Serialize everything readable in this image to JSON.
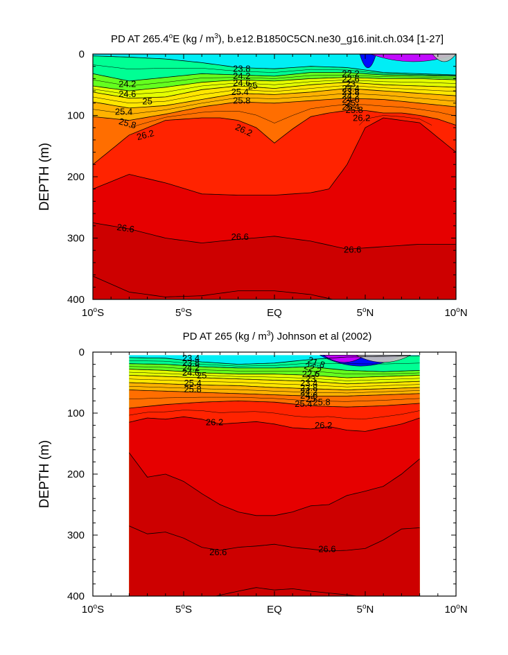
{
  "chart_data": [
    {
      "type": "contour",
      "title": "PD AT 265.4°E (kg / m3), b.e12.B1850C5CN.ne30_g16.init.ch.034 [1-27]",
      "title_parts": {
        "pre": "PD AT 265.4",
        "deg": "o",
        "mid1": "E (kg / m",
        "sup": "3",
        "post": "), b.e12.B1850C5CN.ne30_g16.init.ch.034 [1-27]"
      },
      "ylabel": "DEPTH (m)",
      "xlim": [
        -10,
        10
      ],
      "ylim": [
        0,
        400
      ],
      "y_inverted": true,
      "x_ticks": [
        {
          "value": -10,
          "num": "10",
          "deg": "o",
          "hem": "S"
        },
        {
          "value": -5,
          "num": "5",
          "deg": "o",
          "hem": "S"
        },
        {
          "value": 0,
          "num": "EQ",
          "deg": "",
          "hem": ""
        },
        {
          "value": 5,
          "num": "5",
          "deg": "o",
          "hem": "N"
        },
        {
          "value": 10,
          "num": "10",
          "deg": "o",
          "hem": "N"
        }
      ],
      "y_ticks": [
        0,
        100,
        200,
        300,
        400
      ],
      "data_xrange": [
        -10,
        10
      ],
      "surface_depth": 5,
      "levels": [
        {
          "value": 22.6,
          "color": "#0000ff",
          "xrange": [
            4.7,
            5.6
          ]
        },
        {
          "value": 21.8,
          "color": "#cc00ff",
          "xrange": [
            5.3,
            10
          ]
        },
        {
          "value": 21.4,
          "color": "#c0c0c0",
          "xrange": [
            8.7,
            10
          ]
        }
      ],
      "contour_labels": [
        {
          "text": "23.8",
          "x": -1.8,
          "y": 25,
          "angle": 0
        },
        {
          "text": "24.2",
          "x": -1.8,
          "y": 37,
          "angle": 0
        },
        {
          "text": "24.6",
          "x": -1.8,
          "y": 48,
          "angle": 0
        },
        {
          "text": "25",
          "x": -1.2,
          "y": 53,
          "angle": -10
        },
        {
          "text": "25.4",
          "x": -1.9,
          "y": 63,
          "angle": 0
        },
        {
          "text": "25.8",
          "x": -1.8,
          "y": 77,
          "angle": 0
        },
        {
          "text": "26.2",
          "x": -1.7,
          "y": 125,
          "angle": 25
        },
        {
          "text": "24.2",
          "x": -8.1,
          "y": 50,
          "angle": 0
        },
        {
          "text": "24.6",
          "x": -8.1,
          "y": 66,
          "angle": 0
        },
        {
          "text": "25",
          "x": -7.0,
          "y": 78,
          "angle": 0
        },
        {
          "text": "25.4",
          "x": -8.3,
          "y": 95,
          "angle": 0
        },
        {
          "text": "25.8",
          "x": -8.1,
          "y": 114,
          "angle": 15
        },
        {
          "text": "26.2",
          "x": -7.1,
          "y": 133,
          "angle": -15
        },
        {
          "text": "22.2",
          "x": 4.2,
          "y": 33,
          "angle": 0
        },
        {
          "text": "22.6",
          "x": 4.2,
          "y": 42,
          "angle": 0
        },
        {
          "text": "23",
          "x": 4.2,
          "y": 50,
          "angle": 0
        },
        {
          "text": "23.4",
          "x": 4.2,
          "y": 57,
          "angle": 0
        },
        {
          "text": "23.8",
          "x": 4.2,
          "y": 63,
          "angle": 0
        },
        {
          "text": "24.2",
          "x": 4.2,
          "y": 69,
          "angle": 0
        },
        {
          "text": "24.6",
          "x": 4.2,
          "y": 75,
          "angle": 0
        },
        {
          "text": "25",
          "x": 4.2,
          "y": 81,
          "angle": 0
        },
        {
          "text": "25.4",
          "x": 4.2,
          "y": 87,
          "angle": 0
        },
        {
          "text": "25.8",
          "x": 4.4,
          "y": 92,
          "angle": 0
        },
        {
          "text": "26.2",
          "x": 4.8,
          "y": 105,
          "angle": 0
        },
        {
          "text": "26.6",
          "x": -8.2,
          "y": 285,
          "angle": 8
        },
        {
          "text": "26.6",
          "x": -1.9,
          "y": 299,
          "angle": 0
        },
        {
          "text": "26.6",
          "x": 4.3,
          "y": 320,
          "angle": 0
        }
      ]
    },
    {
      "type": "contour",
      "title": "PD AT 265 (kg / m3) Johnson et al (2002)",
      "title_parts": {
        "pre": "PD AT 265 (kg / m",
        "deg": "",
        "mid1": "",
        "sup": "3",
        "post": ") Johnson et al (2002)"
      },
      "ylabel": "DEPTH (m)",
      "xlim": [
        -10,
        10
      ],
      "ylim": [
        0,
        400
      ],
      "y_inverted": true,
      "x_ticks": [
        {
          "value": -10,
          "num": "10",
          "deg": "o",
          "hem": "S"
        },
        {
          "value": -5,
          "num": "5",
          "deg": "o",
          "hem": "S"
        },
        {
          "value": 0,
          "num": "EQ",
          "deg": "",
          "hem": ""
        },
        {
          "value": 5,
          "num": "5",
          "deg": "o",
          "hem": "N"
        },
        {
          "value": 10,
          "num": "10",
          "deg": "o",
          "hem": "N"
        }
      ],
      "y_ticks": [
        0,
        100,
        200,
        300,
        400
      ],
      "data_xrange": [
        -8,
        8
      ],
      "surface_depth": 5,
      "levels": [
        {
          "value": 22.6,
          "color": "#0000ff",
          "xrange": [
            2.5,
            7
          ]
        },
        {
          "value": 21.8,
          "color": "#cc00ff",
          "xrange": [
            2.7,
            5
          ]
        },
        {
          "value": 21.4,
          "color": "#c0c0c0",
          "xrange": [
            4.5,
            7.5
          ]
        }
      ],
      "contour_labels": [
        {
          "text": "23.4",
          "x": -4.6,
          "y": 11,
          "angle": 0
        },
        {
          "text": "23.8",
          "x": -4.6,
          "y": 19,
          "angle": 0
        },
        {
          "text": "24.2",
          "x": -4.6,
          "y": 27,
          "angle": 0
        },
        {
          "text": "24.6",
          "x": -4.6,
          "y": 35,
          "angle": 0
        },
        {
          "text": "25",
          "x": -4.0,
          "y": 39,
          "angle": 0
        },
        {
          "text": "25.4",
          "x": -4.5,
          "y": 52,
          "angle": 0
        },
        {
          "text": "25.8",
          "x": -4.5,
          "y": 62,
          "angle": 0
        },
        {
          "text": "26.2",
          "x": -3.3,
          "y": 116,
          "angle": 0
        },
        {
          "text": "21.8",
          "x": 2.3,
          "y": 18,
          "angle": 20
        },
        {
          "text": "22.2",
          "x": 2.1,
          "y": 28,
          "angle": 20
        },
        {
          "text": "22.6",
          "x": 2.0,
          "y": 37,
          "angle": 0
        },
        {
          "text": "23",
          "x": 2.0,
          "y": 45,
          "angle": 0
        },
        {
          "text": "23.4",
          "x": 1.9,
          "y": 52,
          "angle": 0
        },
        {
          "text": "23.8",
          "x": 1.9,
          "y": 60,
          "angle": 0
        },
        {
          "text": "24.2",
          "x": 1.9,
          "y": 66,
          "angle": 0
        },
        {
          "text": "24.6",
          "x": 1.9,
          "y": 72,
          "angle": 0
        },
        {
          "text": "25",
          "x": 2.0,
          "y": 78,
          "angle": 0
        },
        {
          "text": "25.4",
          "x": 1.6,
          "y": 86,
          "angle": 0
        },
        {
          "text": "25.8",
          "x": 2.6,
          "y": 83,
          "angle": 0
        },
        {
          "text": "26.2",
          "x": 2.7,
          "y": 121,
          "angle": 0
        },
        {
          "text": "26.6",
          "x": -3.1,
          "y": 329,
          "angle": 0
        },
        {
          "text": "26.6",
          "x": 2.9,
          "y": 324,
          "angle": 0
        }
      ]
    }
  ]
}
